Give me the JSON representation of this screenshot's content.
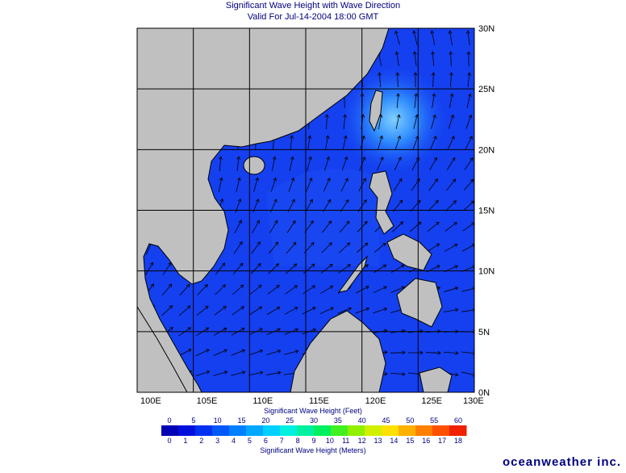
{
  "header": {
    "title": "Significant Wave Height with Wave Direction",
    "subtitle": "Valid For Jul-14-2004 18:00 GMT"
  },
  "map": {
    "longitude_labels": [
      "100E",
      "105E",
      "110E",
      "115E",
      "120E",
      "125E",
      "130E"
    ],
    "latitude_labels": [
      "30N",
      "25N",
      "20N",
      "15N",
      "10N",
      "5N",
      "0N"
    ]
  },
  "colorbar": {
    "feet_title": "Significant Wave Height (Feet)",
    "feet_ticks": [
      0,
      5,
      10,
      15,
      20,
      25,
      30,
      35,
      40,
      45,
      50,
      55,
      60
    ],
    "meters_title": "Significant Wave Height (Meters)",
    "meters_ticks": [
      0,
      1,
      2,
      3,
      4,
      5,
      6,
      7,
      8,
      9,
      10,
      11,
      12,
      13,
      14,
      15,
      16,
      17,
      18
    ]
  },
  "logo": "oceanweather inc."
}
